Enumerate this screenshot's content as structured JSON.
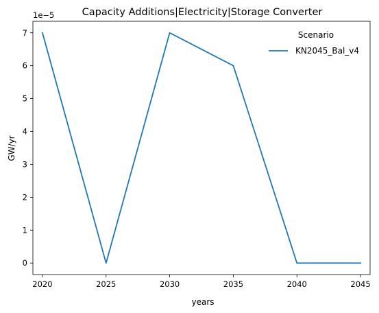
{
  "chart_data": {
    "type": "line",
    "title": "Capacity Additions|Electricity|Storage Converter",
    "xlabel": "years",
    "ylabel": "GW/yr",
    "y_multiplier_label": "1e−5",
    "y_scale_exponent": -5,
    "x_ticks": [
      2020,
      2025,
      2030,
      2035,
      2040,
      2045
    ],
    "x_tick_labels": [
      "2020",
      "2025",
      "2030",
      "2035",
      "2040",
      "2045"
    ],
    "y_ticks": [
      0,
      1,
      2,
      3,
      4,
      5,
      6,
      7
    ],
    "y_tick_labels": [
      "0",
      "1",
      "2",
      "3",
      "4",
      "5",
      "6",
      "7"
    ],
    "xlim": [
      2019.25,
      2045.75
    ],
    "ylim": [
      -0.35,
      7.35
    ],
    "grid": false,
    "legend": {
      "title": "Scenario",
      "placement": "top-right"
    },
    "series": [
      {
        "name": "KN2045_Bal_v4",
        "color": "#1f77b4",
        "x": [
          2020,
          2025,
          2030,
          2035,
          2040,
          2045
        ],
        "y": [
          7,
          0,
          7,
          6,
          0,
          0
        ]
      }
    ]
  }
}
